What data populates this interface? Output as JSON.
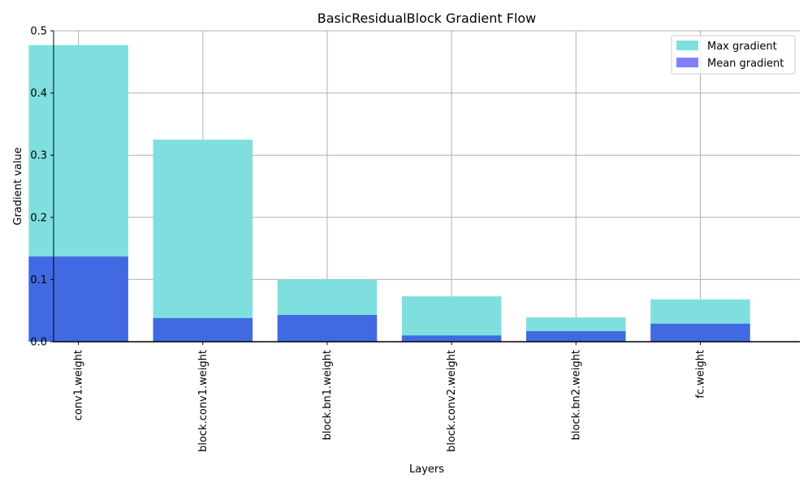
{
  "chart_data": {
    "type": "bar",
    "title": "BasicResidualBlock Gradient Flow",
    "xlabel": "Layers",
    "ylabel": "Gradient value",
    "ylim": [
      0,
      0.5
    ],
    "yticks": [
      0.0,
      0.1,
      0.2,
      0.3,
      0.4,
      0.5
    ],
    "ytick_labels": [
      "0.0",
      "0.1",
      "0.2",
      "0.3",
      "0.4",
      "0.5"
    ],
    "xlim": [
      -0.2,
      5.8
    ],
    "grid": true,
    "legend_position": "top-right",
    "categories": [
      "conv1.weight",
      "block.conv1.weight",
      "block.bn1.weight",
      "block.conv2.weight",
      "block.bn2.weight",
      "fc.weight"
    ],
    "series": [
      {
        "name": "Max gradient",
        "color": "#7fdfdf",
        "values": [
          0.477,
          0.325,
          0.1,
          0.073,
          0.039,
          0.068
        ]
      },
      {
        "name": "Mean gradient",
        "color": "#4169e1",
        "legend_color": "#8080ff",
        "values": [
          0.137,
          0.038,
          0.043,
          0.01,
          0.017,
          0.029
        ]
      }
    ]
  }
}
